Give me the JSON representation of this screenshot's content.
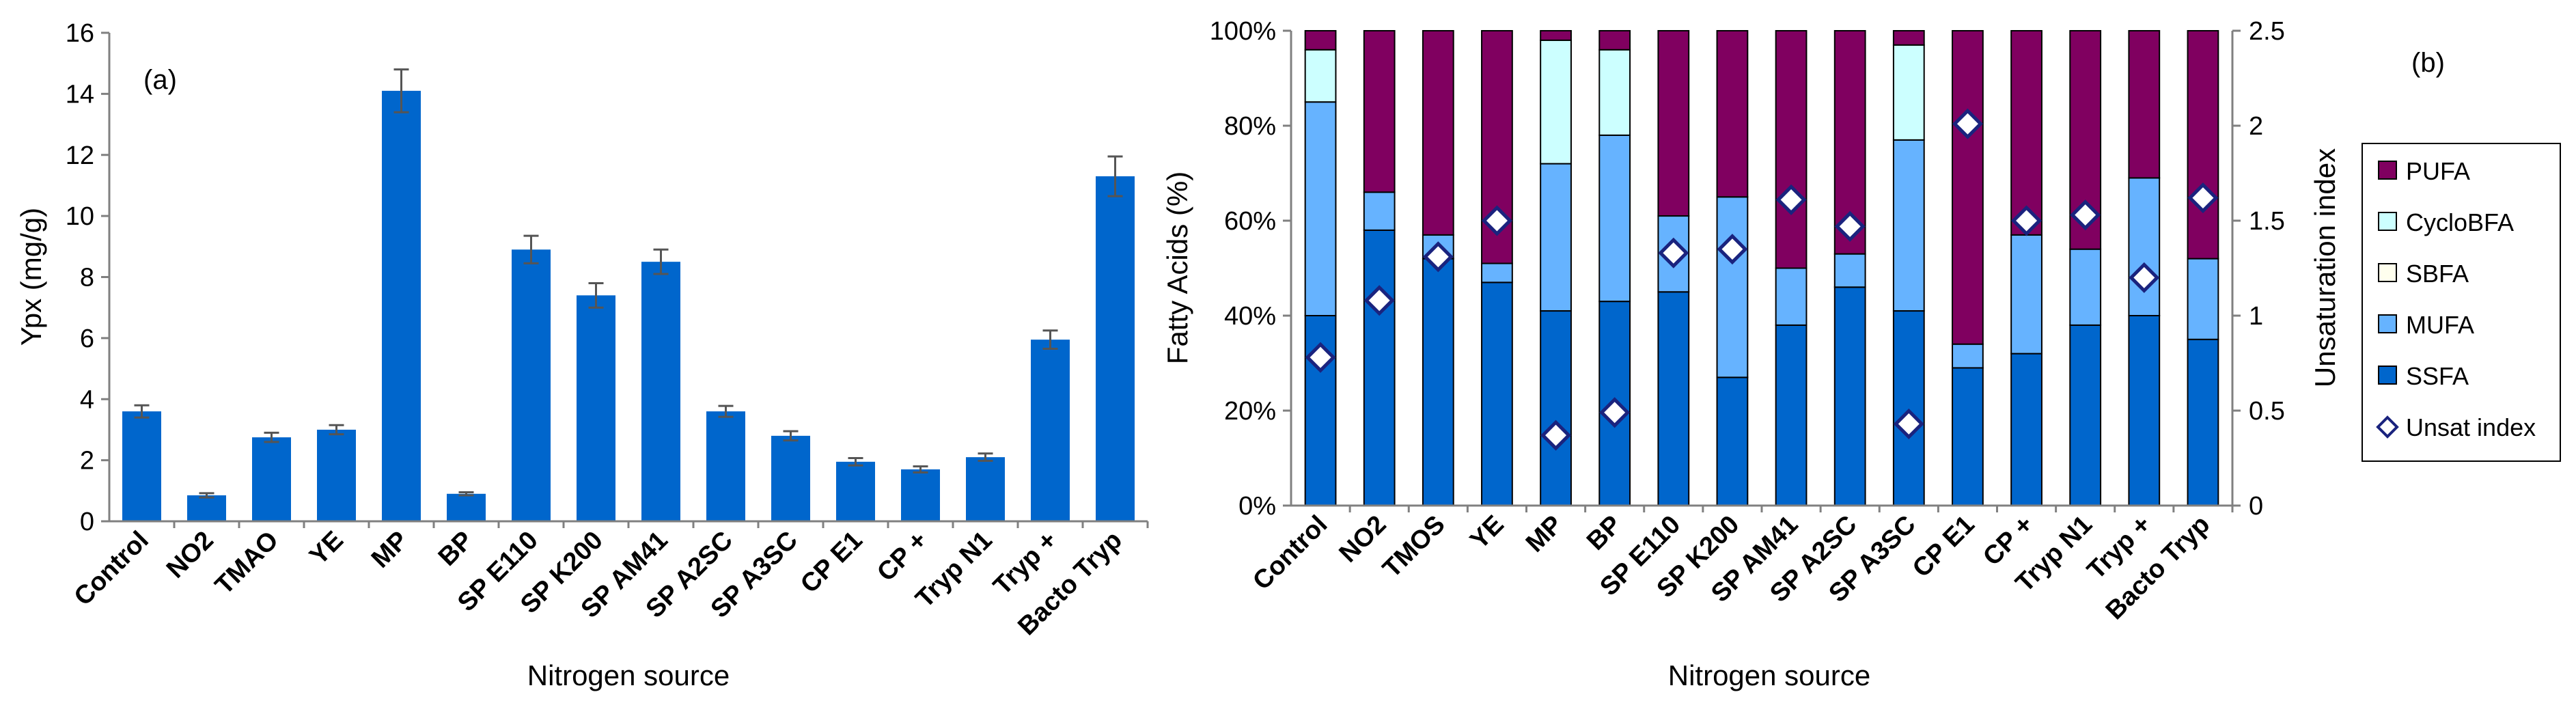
{
  "chart_data": [
    {
      "type": "bar",
      "panel_label": "(a)",
      "xlabel": "Nitrogen source",
      "ylabel": "Ypx (mg/g)",
      "ylim": [
        0,
        16
      ],
      "yticks": [
        0,
        2,
        4,
        6,
        8,
        10,
        12,
        14,
        16
      ],
      "grid": false,
      "categories": [
        "Control",
        "NO2",
        "TMAO",
        "YE",
        "MP",
        "BP",
        "SP E110",
        "SP K200",
        "SP AM41",
        "SP A2SC",
        "SP A3SC",
        "CP E1",
        "CP +",
        "Tryp N1",
        "Tryp +",
        "Bacto Tryp"
      ],
      "values": [
        3.6,
        0.85,
        2.75,
        3.0,
        14.1,
        0.9,
        8.9,
        7.4,
        8.5,
        3.6,
        2.8,
        1.95,
        1.7,
        2.1,
        5.95,
        11.3
      ],
      "errors": [
        0.2,
        0.07,
        0.15,
        0.15,
        0.7,
        0.05,
        0.45,
        0.4,
        0.4,
        0.18,
        0.15,
        0.12,
        0.1,
        0.12,
        0.3,
        0.65
      ],
      "color": "#0066cc"
    },
    {
      "type": "bar",
      "stacked": true,
      "panel_label": "(b)",
      "xlabel": "Nitrogen source",
      "ylabel": "Fatty Acids (%)",
      "y2label": "Unsaturation index",
      "ylim": [
        0,
        100
      ],
      "yticks": [
        "0%",
        "20%",
        "40%",
        "60%",
        "80%",
        "100%"
      ],
      "y2lim": [
        0,
        2.5
      ],
      "y2ticks": [
        "0",
        "0.5",
        "1",
        "1.5",
        "2",
        "2.5"
      ],
      "legend_position": "right",
      "categories": [
        "Control",
        "NO2",
        "TMOS",
        "YE",
        "MP",
        "BP",
        "SP E110",
        "SP K200",
        "SP AM41",
        "SP A2SC",
        "SP A3SC",
        "CP E1",
        "CP +",
        "Tryp N1",
        "Tryp +",
        "Bacto Tryp"
      ],
      "series": [
        {
          "name": "SSFA",
          "color": "#0066cc",
          "values": [
            40,
            58,
            52,
            47,
            41,
            43,
            45,
            27,
            38,
            46,
            41,
            29,
            32,
            38,
            40,
            35
          ]
        },
        {
          "name": "MUFA",
          "color": "#66b3ff",
          "values": [
            45,
            8,
            5,
            4,
            31,
            35,
            16,
            38,
            12,
            7,
            36,
            5,
            25,
            16,
            29,
            17
          ]
        },
        {
          "name": "SBFA",
          "color": "#ffffee",
          "values": [
            0,
            0,
            0,
            0,
            0,
            0,
            0,
            0,
            0,
            0,
            0,
            0,
            0,
            0,
            0,
            0
          ]
        },
        {
          "name": "CycloBFA",
          "color": "#ccffff",
          "values": [
            11,
            0,
            0,
            0,
            26,
            18,
            0,
            0,
            0,
            0,
            20,
            0,
            0,
            0,
            0,
            0
          ]
        },
        {
          "name": "PUFA",
          "color": "#800060",
          "values": [
            4,
            34,
            43,
            49,
            2,
            4,
            39,
            35,
            50,
            47,
            3,
            66,
            43,
            46,
            31,
            48
          ]
        }
      ],
      "line_series": {
        "name": "Unsat index",
        "axis": "secondary",
        "marker": "diamond",
        "values": [
          0.78,
          1.08,
          1.31,
          1.5,
          0.37,
          0.49,
          1.33,
          1.35,
          1.61,
          1.47,
          0.43,
          2.01,
          1.5,
          1.53,
          1.2,
          1.62
        ]
      },
      "legend": [
        "PUFA",
        "CycloBFA",
        "SBFA",
        "MUFA",
        "SSFA",
        "Unsat index"
      ]
    }
  ]
}
